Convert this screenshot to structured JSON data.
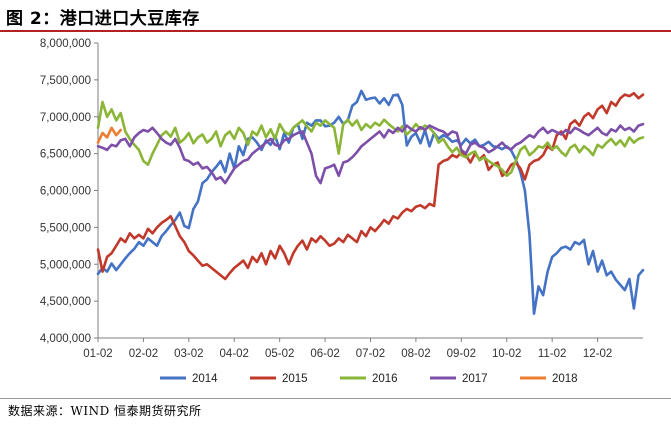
{
  "title": "图 2：港口进口大豆库存",
  "source": "数据来源：WIND 恒泰期货研究所",
  "chart_data": {
    "type": "line",
    "title": "图 2：港口进口大豆库存",
    "xlabel": "",
    "ylabel": "",
    "ylim": [
      4000000,
      8000000
    ],
    "y_ticks": [
      "4,000,000",
      "4,500,000",
      "5,000,000",
      "5,500,000",
      "6,000,000",
      "6,500,000",
      "7,000,000",
      "7,500,000",
      "8,000,000"
    ],
    "x_ticks": [
      "01-02",
      "02-02",
      "03-02",
      "04-02",
      "05-02",
      "06-02",
      "07-02",
      "08-02",
      "09-02",
      "10-02",
      "11-02",
      "12-02"
    ],
    "x_range_days": [
      0,
      360
    ],
    "grid": false,
    "legend_position": "bottom",
    "series": [
      {
        "name": "2014",
        "color": "#4472c4",
        "x": [
          0,
          3,
          6,
          9,
          12,
          15,
          18,
          21,
          24,
          27,
          30,
          33,
          36,
          39,
          42,
          45,
          48,
          51,
          54,
          57,
          60,
          63,
          66,
          69,
          72,
          75,
          78,
          81,
          84,
          87,
          90,
          93,
          96,
          99,
          102,
          105,
          108,
          111,
          114,
          117,
          120,
          123,
          126,
          129,
          132,
          135,
          138,
          141,
          144,
          147,
          150,
          153,
          156,
          159,
          162,
          165,
          168,
          171,
          174,
          177,
          180,
          183,
          186,
          189,
          192,
          195,
          198,
          201,
          204,
          207,
          210,
          213,
          216,
          219,
          222,
          225,
          228,
          231,
          234,
          237,
          240,
          243,
          246,
          249,
          252,
          255,
          258,
          261,
          264,
          267,
          270,
          273,
          276,
          279,
          282,
          285,
          288,
          291,
          294,
          297,
          300,
          303,
          306,
          309,
          312,
          315,
          318,
          321,
          324,
          327,
          330,
          333,
          336,
          339,
          342,
          345,
          348,
          351,
          354,
          357,
          360
        ],
        "y": [
          4870000,
          4950000,
          4900000,
          5010000,
          4920000,
          5000000,
          5080000,
          5150000,
          5210000,
          5300000,
          5250000,
          5350000,
          5300000,
          5250000,
          5380000,
          5450000,
          5530000,
          5600000,
          5700000,
          5520000,
          5490000,
          5750000,
          5850000,
          6100000,
          6150000,
          6250000,
          6320000,
          6400000,
          6250000,
          6500000,
          6300000,
          6600000,
          6480000,
          6700000,
          6720000,
          6650000,
          6550000,
          6680000,
          6620000,
          6740000,
          6560000,
          6780000,
          6650000,
          6850000,
          6900000,
          6700000,
          6920000,
          6880000,
          6950000,
          6950000,
          6870000,
          6880000,
          6920000,
          7000000,
          6900000,
          6950000,
          7150000,
          7200000,
          7350000,
          7230000,
          7250000,
          7260000,
          7180000,
          7250000,
          7160000,
          7290000,
          7300000,
          7160000,
          6610000,
          6730000,
          6780000,
          6640000,
          6820000,
          6600000,
          6780000,
          6700000,
          6750000,
          6720000,
          6660000,
          6680000,
          6620000,
          6700000,
          6640000,
          6690000,
          6600000,
          6620000,
          6660000,
          6600000,
          6590000,
          6560000,
          6600000,
          6540000,
          6420000,
          6250000,
          6000000,
          5400000,
          4330000,
          4700000,
          4580000,
          4900000,
          5100000,
          5150000,
          5220000,
          5240000,
          5200000,
          5300000,
          5270000,
          5330000,
          5000000,
          5180000,
          4900000,
          5050000,
          4850000,
          4900000,
          4790000,
          4720000,
          4650000,
          4800000,
          4400000,
          4850000,
          4920000
        ]
      },
      {
        "name": "2015",
        "color": "#c0392b",
        "x": [
          0,
          3,
          6,
          9,
          12,
          15,
          18,
          21,
          24,
          27,
          30,
          33,
          36,
          39,
          42,
          45,
          48,
          51,
          54,
          57,
          60,
          63,
          66,
          69,
          72,
          75,
          78,
          81,
          84,
          87,
          90,
          93,
          96,
          99,
          102,
          105,
          108,
          111,
          114,
          117,
          120,
          123,
          126,
          129,
          132,
          135,
          138,
          141,
          144,
          147,
          150,
          153,
          156,
          159,
          162,
          165,
          168,
          171,
          174,
          177,
          180,
          183,
          186,
          189,
          192,
          195,
          198,
          201,
          204,
          207,
          210,
          213,
          216,
          219,
          222,
          225,
          228,
          231,
          234,
          237,
          240,
          243,
          246,
          249,
          252,
          255,
          258,
          261,
          264,
          267,
          270,
          273,
          276,
          279,
          282,
          285,
          288,
          291,
          294,
          297,
          300,
          303,
          306,
          309,
          312,
          315,
          318,
          321,
          324,
          327,
          330,
          333,
          336,
          339,
          342,
          345,
          348,
          351,
          354,
          357,
          360
        ],
        "y": [
          5200000,
          4900000,
          5100000,
          5150000,
          5250000,
          5350000,
          5300000,
          5420000,
          5350000,
          5400000,
          5350000,
          5480000,
          5420000,
          5500000,
          5560000,
          5600000,
          5650000,
          5520000,
          5380000,
          5300000,
          5180000,
          5120000,
          5050000,
          4980000,
          5000000,
          4950000,
          4900000,
          4850000,
          4800000,
          4880000,
          4950000,
          5000000,
          5050000,
          4950000,
          5100000,
          5030000,
          5150000,
          5000000,
          5180000,
          5080000,
          5250000,
          5150000,
          5000000,
          5150000,
          5250000,
          5320000,
          5200000,
          5350000,
          5300000,
          5380000,
          5320000,
          5250000,
          5280000,
          5350000,
          5300000,
          5400000,
          5350000,
          5300000,
          5450000,
          5380000,
          5500000,
          5450000,
          5520000,
          5600000,
          5550000,
          5650000,
          5620000,
          5700000,
          5750000,
          5720000,
          5780000,
          5800000,
          5760000,
          5820000,
          5790000,
          6350000,
          6400000,
          6420000,
          6480000,
          6450000,
          6520000,
          6480000,
          6380000,
          6500000,
          6420000,
          6480000,
          6280000,
          6350000,
          6380000,
          6200000,
          6250000,
          6350000,
          6380000,
          6300000,
          6150000,
          6350000,
          6400000,
          6420000,
          6480000,
          6600000,
          6550000,
          6750000,
          6800000,
          6700000,
          6900000,
          6950000,
          6880000,
          7000000,
          7050000,
          6980000,
          7100000,
          7150000,
          7050000,
          7200000,
          7150000,
          7250000,
          7300000,
          7280000,
          7320000,
          7250000,
          7300000
        ]
      },
      {
        "name": "2016",
        "color": "#8ab536",
        "x": [
          0,
          3,
          6,
          9,
          12,
          15,
          18,
          21,
          24,
          27,
          30,
          33,
          36,
          39,
          42,
          45,
          48,
          51,
          54,
          57,
          60,
          63,
          66,
          69,
          72,
          75,
          78,
          81,
          84,
          87,
          90,
          93,
          96,
          99,
          102,
          105,
          108,
          111,
          114,
          117,
          120,
          123,
          126,
          129,
          132,
          135,
          138,
          141,
          144,
          147,
          150,
          153,
          156,
          159,
          162,
          165,
          168,
          171,
          174,
          177,
          180,
          183,
          186,
          189,
          192,
          195,
          198,
          201,
          204,
          207,
          210,
          213,
          216,
          219,
          222,
          225,
          228,
          231,
          234,
          237,
          240,
          243,
          246,
          249,
          252,
          255,
          258,
          261,
          264,
          267,
          270,
          273,
          276,
          279,
          282,
          285,
          288,
          291,
          294,
          297,
          300,
          303,
          306,
          309,
          312,
          315,
          318,
          321,
          324,
          327,
          330,
          333,
          336,
          339,
          342,
          345,
          348,
          351,
          354,
          357,
          360
        ],
        "y": [
          6850000,
          7200000,
          7000000,
          7100000,
          6950000,
          7050000,
          6800000,
          6700000,
          6620000,
          6550000,
          6400000,
          6350000,
          6500000,
          6620000,
          6750000,
          6800000,
          6730000,
          6850000,
          6650000,
          6700000,
          6780000,
          6640000,
          6720000,
          6760000,
          6650000,
          6700000,
          6800000,
          6600000,
          6750000,
          6800000,
          6700000,
          6850000,
          6780000,
          6620000,
          6800000,
          6750000,
          6880000,
          6720000,
          6830000,
          6700000,
          6900000,
          6800000,
          6760000,
          6850000,
          6900000,
          6950000,
          6870000,
          6800000,
          6920000,
          6880000,
          6950000,
          6900000,
          6850000,
          6500000,
          6900000,
          6960000,
          6880000,
          6950000,
          6820000,
          6900000,
          6850000,
          6920000,
          6880000,
          6960000,
          6900000,
          6850000,
          6800000,
          6870000,
          6760000,
          6820000,
          6900000,
          6830000,
          6880000,
          6850000,
          6780000,
          6650000,
          6700000,
          6600000,
          6520000,
          6580000,
          6480000,
          6450000,
          6500000,
          6530000,
          6410000,
          6450000,
          6400000,
          6360000,
          6330000,
          6280000,
          6200000,
          6250000,
          6400000,
          6550000,
          6600000,
          6480000,
          6530000,
          6600000,
          6580000,
          6650000,
          6560000,
          6600000,
          6520000,
          6470000,
          6580000,
          6620000,
          6520000,
          6600000,
          6550000,
          6480000,
          6620000,
          6580000,
          6650000,
          6700000,
          6620000,
          6680000,
          6600000,
          6720000,
          6650000,
          6700000,
          6720000
        ]
      },
      {
        "name": "2017",
        "color": "#7d4fa8",
        "x": [
          0,
          3,
          6,
          9,
          12,
          15,
          18,
          21,
          24,
          27,
          30,
          33,
          36,
          39,
          42,
          45,
          48,
          51,
          54,
          57,
          60,
          63,
          66,
          69,
          72,
          75,
          78,
          81,
          84,
          87,
          90,
          93,
          96,
          99,
          102,
          105,
          108,
          111,
          114,
          117,
          120,
          123,
          126,
          129,
          132,
          135,
          138,
          141,
          144,
          147,
          150,
          153,
          156,
          159,
          162,
          165,
          168,
          171,
          174,
          177,
          180,
          183,
          186,
          189,
          192,
          195,
          198,
          201,
          204,
          207,
          210,
          213,
          216,
          219,
          222,
          225,
          228,
          231,
          234,
          237,
          240,
          243,
          246,
          249,
          252,
          255,
          258,
          261,
          264,
          267,
          270,
          273,
          276,
          279,
          282,
          285,
          288,
          291,
          294,
          297,
          300,
          303,
          306,
          309,
          312,
          315,
          318,
          321,
          324,
          327,
          330,
          333,
          336,
          339,
          342,
          345,
          348,
          351,
          354,
          357,
          360
        ],
        "y": [
          6600000,
          6580000,
          6550000,
          6620000,
          6600000,
          6680000,
          6700000,
          6600000,
          6720000,
          6780000,
          6820000,
          6800000,
          6850000,
          6780000,
          6700000,
          6650000,
          6620000,
          6700000,
          6580000,
          6420000,
          6400000,
          6350000,
          6380000,
          6300000,
          6320000,
          6250000,
          6150000,
          6180000,
          6100000,
          6200000,
          6300000,
          6350000,
          6400000,
          6420000,
          6500000,
          6550000,
          6600000,
          6650000,
          6700000,
          6620000,
          6600000,
          6680000,
          6700000,
          6750000,
          6780000,
          6800000,
          6650000,
          6500000,
          6200000,
          6100000,
          6300000,
          6320000,
          6350000,
          6200000,
          6380000,
          6400000,
          6450000,
          6520000,
          6600000,
          6650000,
          6700000,
          6750000,
          6800000,
          6720000,
          6820000,
          6780000,
          6850000,
          6800000,
          6880000,
          6830000,
          6800000,
          6860000,
          6820000,
          6880000,
          6850000,
          6820000,
          6800000,
          6750000,
          6800000,
          6780000,
          6550000,
          6500000,
          6620000,
          6650000,
          6600000,
          6580000,
          6520000,
          6550000,
          6600000,
          6650000,
          6580000,
          6560000,
          6620000,
          6650000,
          6700000,
          6750000,
          6720000,
          6800000,
          6850000,
          6780000,
          6820000,
          6790000,
          6760000,
          6820000,
          6780000,
          6850000,
          6820000,
          6780000,
          6750000,
          6800000,
          6850000,
          6780000,
          6750000,
          6830000,
          6800000,
          6880000,
          6820000,
          6850000,
          6800000,
          6880000,
          6900000
        ]
      },
      {
        "name": "2018",
        "color": "#ed7d31",
        "x": [
          0,
          3,
          6,
          9,
          12,
          15
        ],
        "y": [
          6650000,
          6780000,
          6720000,
          6850000,
          6750000,
          6820000
        ]
      }
    ]
  }
}
